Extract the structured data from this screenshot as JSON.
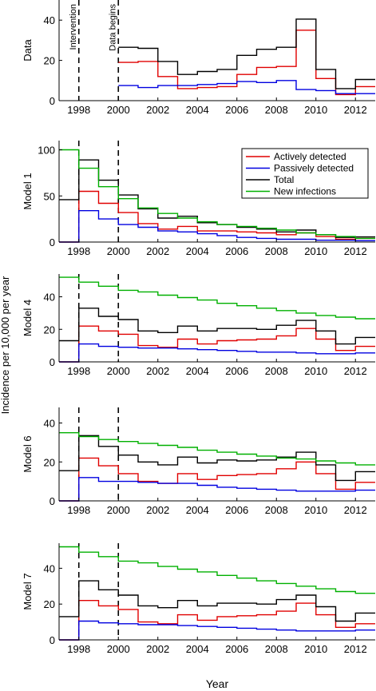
{
  "figure": {
    "shared_ylabel": "Incidence per 10,000 per year",
    "xlabel": "Year",
    "x_ticks": [
      "1998",
      "2000",
      "2002",
      "2004",
      "2006",
      "2008",
      "2010",
      "2012"
    ],
    "annotations": [
      "Intervention",
      "Data begins"
    ],
    "legend": {
      "placement": "top-right of Model 1 panel",
      "entries": [
        {
          "label": "Actively detected",
          "color": "#e00000"
        },
        {
          "label": "Passively detected",
          "color": "#0000e0"
        },
        {
          "label": "Total",
          "color": "#000000"
        },
        {
          "label": "New infections",
          "color": "#00b000"
        }
      ]
    }
  },
  "chart_data": [
    {
      "type": "line",
      "step": true,
      "ylabel": "Data",
      "xlim": [
        1997,
        2013
      ],
      "ylim": [
        0,
        50
      ],
      "y_ticks": [
        0,
        20,
        40
      ],
      "x": [
        2000,
        2001,
        2002,
        2003,
        2004,
        2005,
        2006,
        2007,
        2008,
        2009,
        2010,
        2011,
        2012
      ],
      "series": [
        {
          "name": "Actively detected",
          "color": "#e00000",
          "values": [
            19,
            19.5,
            12,
            6,
            6.5,
            7,
            13,
            16.5,
            17,
            35,
            11,
            3,
            7
          ]
        },
        {
          "name": "Passively detected",
          "color": "#0000e0",
          "values": [
            7.5,
            6.5,
            7.5,
            7.5,
            8,
            8.5,
            9.5,
            9,
            10,
            5.5,
            5,
            3.5,
            3.5
          ]
        },
        {
          "name": "Total",
          "color": "#000000",
          "values": [
            26.5,
            26,
            19.5,
            13,
            14.5,
            15.5,
            22.5,
            25.5,
            26.5,
            40.5,
            15.5,
            6,
            10.5
          ]
        }
      ]
    },
    {
      "type": "line",
      "step": true,
      "ylabel": "Model 1",
      "xlim": [
        1997,
        2013
      ],
      "ylim": [
        0,
        110
      ],
      "y_ticks": [
        0,
        50,
        100
      ],
      "x": [
        1997,
        1998,
        1999,
        2000,
        2001,
        2002,
        2003,
        2004,
        2005,
        2006,
        2007,
        2008,
        2009,
        2010,
        2011,
        2012
      ],
      "series": [
        {
          "name": "Actively detected",
          "color": "#e00000",
          "values": [
            0,
            55,
            42,
            32,
            20,
            14,
            17,
            12,
            12,
            11,
            10,
            8,
            10,
            6,
            3,
            4
          ]
        },
        {
          "name": "Passively detected",
          "color": "#0000e0",
          "values": [
            0,
            34,
            25,
            19,
            16,
            12,
            11,
            9,
            7,
            5,
            4,
            3,
            3,
            2,
            2,
            1.5
          ]
        },
        {
          "name": "Total",
          "color": "#000000",
          "values": [
            46,
            89,
            67,
            51,
            36,
            26,
            28,
            21,
            19,
            16,
            14,
            11,
            13,
            8,
            5,
            5.5
          ]
        },
        {
          "name": "New infections",
          "color": "#00b000",
          "values": [
            100,
            80,
            60,
            47,
            37,
            31,
            26,
            22,
            19,
            17,
            15,
            13,
            10,
            8,
            6,
            4
          ]
        }
      ]
    },
    {
      "type": "line",
      "step": true,
      "ylabel": "Model 4",
      "xlim": [
        1997,
        2013
      ],
      "ylim": [
        0,
        54
      ],
      "y_ticks": [
        0,
        20,
        40
      ],
      "x": [
        1997,
        1998,
        1999,
        2000,
        2001,
        2002,
        2003,
        2004,
        2005,
        2006,
        2007,
        2008,
        2009,
        2010,
        2011,
        2012
      ],
      "series": [
        {
          "name": "Actively detected",
          "color": "#e00000",
          "values": [
            0,
            22,
            19,
            17,
            10,
            9,
            14,
            11,
            13,
            13.5,
            14,
            16,
            20.5,
            14,
            7,
            9.5
          ]
        },
        {
          "name": "Passively detected",
          "color": "#0000e0",
          "values": [
            0,
            11,
            9.5,
            9,
            8.5,
            8.5,
            8,
            7.5,
            7,
            6.5,
            6,
            6,
            5.5,
            5,
            5,
            5.5
          ]
        },
        {
          "name": "Total",
          "color": "#000000",
          "values": [
            13,
            33,
            28,
            26,
            19,
            18,
            22,
            19,
            20.5,
            20.5,
            20,
            22.5,
            25.5,
            19,
            11,
            15
          ]
        },
        {
          "name": "New infections",
          "color": "#00b000",
          "values": [
            52,
            49,
            46.5,
            44,
            43,
            41,
            39.5,
            38,
            36,
            34.5,
            33,
            31.5,
            30,
            28.5,
            27.5,
            26.5
          ]
        }
      ]
    },
    {
      "type": "line",
      "step": true,
      "ylabel": "Model 6",
      "xlim": [
        1997,
        2013
      ],
      "ylim": [
        0,
        48
      ],
      "y_ticks": [
        0,
        20,
        40
      ],
      "x": [
        1997,
        1998,
        1999,
        2000,
        2001,
        2002,
        2003,
        2004,
        2005,
        2006,
        2007,
        2008,
        2009,
        2010,
        2011,
        2012
      ],
      "series": [
        {
          "name": "Actively detected",
          "color": "#e00000",
          "values": [
            0,
            22,
            18,
            14,
            10,
            9,
            14,
            11,
            13,
            13.5,
            14,
            16.5,
            20,
            14,
            6,
            9.5
          ]
        },
        {
          "name": "Passively detected",
          "color": "#0000e0",
          "values": [
            0,
            12,
            10,
            10,
            9.5,
            9,
            9,
            8,
            7,
            6.5,
            6,
            5.5,
            5,
            5,
            5,
            5.5
          ]
        },
        {
          "name": "Total",
          "color": "#000000",
          "values": [
            15.5,
            33.5,
            28,
            23.5,
            20,
            18.5,
            22.5,
            19.5,
            21,
            20.5,
            21,
            22.5,
            25,
            18.5,
            10.5,
            15
          ]
        },
        {
          "name": "New infections",
          "color": "#00b000",
          "values": [
            35,
            33,
            31.5,
            30.5,
            29.5,
            28.5,
            27.5,
            26,
            25,
            24,
            23,
            22,
            21.5,
            20.5,
            19.5,
            18.5
          ]
        }
      ]
    },
    {
      "type": "line",
      "step": true,
      "ylabel": "Model 7",
      "xlim": [
        1997,
        2013
      ],
      "ylim": [
        0,
        54
      ],
      "y_ticks": [
        0,
        20,
        40
      ],
      "x": [
        1997,
        1998,
        1999,
        2000,
        2001,
        2002,
        2003,
        2004,
        2005,
        2006,
        2007,
        2008,
        2009,
        2010,
        2011,
        2012
      ],
      "series": [
        {
          "name": "Actively detected",
          "color": "#e00000",
          "values": [
            0,
            22,
            19,
            17,
            10,
            9,
            14,
            11,
            13,
            13.5,
            14,
            16,
            20.5,
            14,
            7,
            9
          ]
        },
        {
          "name": "Passively detected",
          "color": "#0000e0",
          "values": [
            0,
            10.5,
            9.5,
            9,
            8.5,
            8.5,
            8,
            7.5,
            7,
            6.5,
            6,
            5.5,
            5,
            5,
            5,
            5.5
          ]
        },
        {
          "name": "Total",
          "color": "#000000",
          "values": [
            13,
            33,
            28,
            25,
            19,
            18,
            22,
            19,
            20.5,
            20.5,
            20,
            22.5,
            25,
            18.5,
            10.5,
            15
          ]
        },
        {
          "name": "New infections",
          "color": "#00b000",
          "values": [
            52,
            49,
            46.5,
            44,
            43,
            41,
            39.5,
            38,
            36,
            34.5,
            33,
            31.5,
            30,
            28.5,
            27,
            26
          ]
        }
      ]
    }
  ]
}
